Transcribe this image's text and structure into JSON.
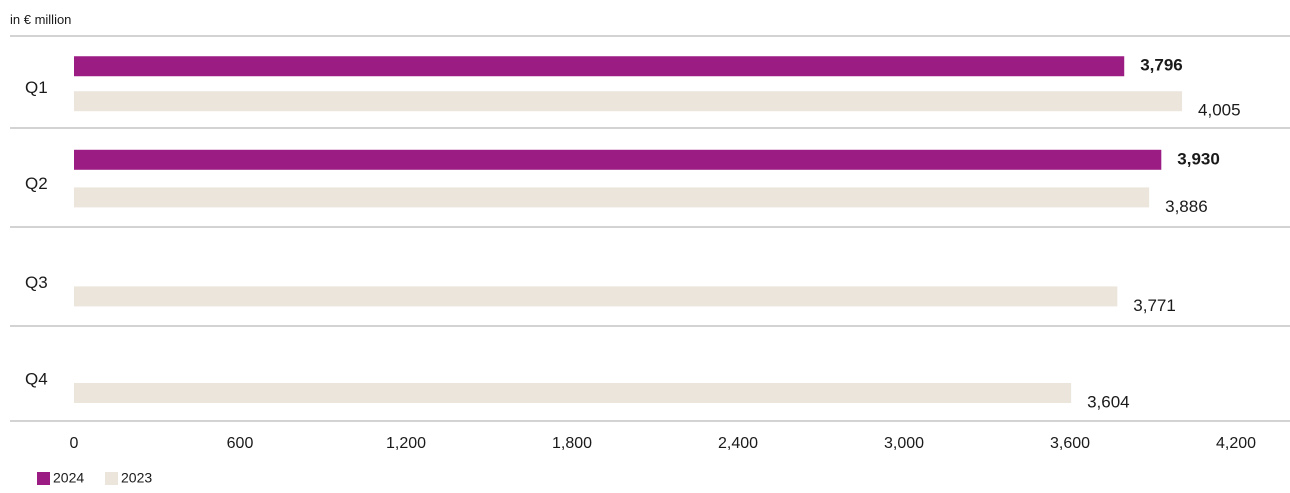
{
  "chart_data": {
    "type": "bar",
    "orientation": "horizontal",
    "unit_label": "in € million",
    "categories": [
      "Q1",
      "Q2",
      "Q3",
      "Q4"
    ],
    "series": [
      {
        "name": "2024",
        "color": "#9b1d84",
        "values": [
          3796,
          3930,
          null,
          null
        ],
        "labels": [
          "3,796",
          "3,930",
          "",
          ""
        ]
      },
      {
        "name": "2023",
        "color": "#ebe5dc",
        "values": [
          4005,
          3886,
          3771,
          3604
        ],
        "labels": [
          "4,005",
          "3,886",
          "3,771",
          "3,604"
        ]
      }
    ],
    "xlim": [
      0,
      4200
    ],
    "xticks": [
      0,
      600,
      1200,
      1800,
      2400,
      3000,
      3600,
      4200
    ],
    "xtick_labels": [
      "0",
      "600",
      "1,200",
      "1,800",
      "2,400",
      "3,000",
      "3,600",
      "4,200"
    ],
    "grid": false,
    "legend_position": "bottom-left"
  }
}
